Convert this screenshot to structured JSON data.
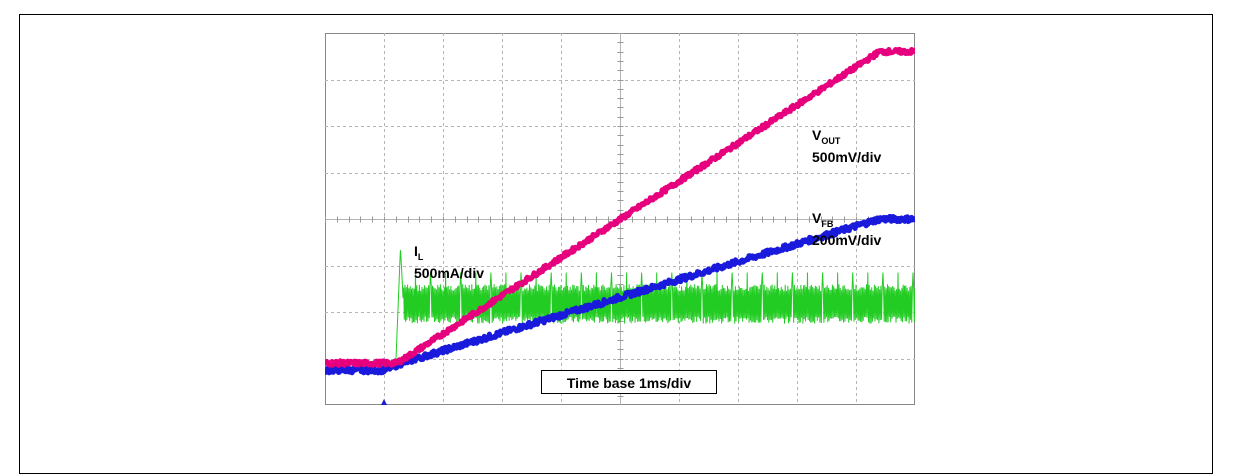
{
  "chart_data": {
    "type": "line",
    "title": "",
    "xlabel": "",
    "ylabel": "",
    "grid": true,
    "x_divisions": 10,
    "y_divisions": 8,
    "xlim": [
      0,
      10
    ],
    "ylim": [
      0,
      8
    ],
    "time_base": "Time base 1ms/div",
    "trigger_marker_x": 1.0,
    "series": [
      {
        "label_main": "V",
        "label_sub": "OUT",
        "scale": "500mV/div",
        "color": "#e6007e",
        "points": [
          [
            0,
            0.9
          ],
          [
            1.2,
            0.9
          ],
          [
            1.35,
            1.0
          ],
          [
            9.4,
            7.6
          ],
          [
            10,
            7.6
          ]
        ]
      },
      {
        "label_main": "V",
        "label_sub": "FB",
        "scale": "200mV/div",
        "color": "#1a1adc",
        "points": [
          [
            0,
            0.75
          ],
          [
            1.0,
            0.75
          ],
          [
            1.3,
            0.9
          ],
          [
            9.4,
            4.0
          ],
          [
            10,
            4.0
          ]
        ]
      },
      {
        "label_main": "I",
        "label_sub": "L",
        "scale": "500mA/div",
        "color": "#22cc22",
        "points": [
          [
            0,
            0.9
          ],
          [
            1.2,
            0.9
          ],
          [
            1.28,
            3.4
          ],
          [
            1.33,
            2.1
          ],
          [
            1.45,
            2.25
          ],
          [
            10,
            2.25
          ]
        ],
        "ripple_band": [
          1.75,
          2.6
        ]
      }
    ]
  },
  "labels": {
    "vout_main": "V",
    "vout_sub": "OUT",
    "vout_scale": "500mV/div",
    "vfb_main": "V",
    "vfb_sub": "FB",
    "vfb_scale": "200mV/div",
    "il_main": "I",
    "il_sub": "L",
    "il_scale": "500mA/div",
    "time_base": "Time base 1ms/div"
  }
}
